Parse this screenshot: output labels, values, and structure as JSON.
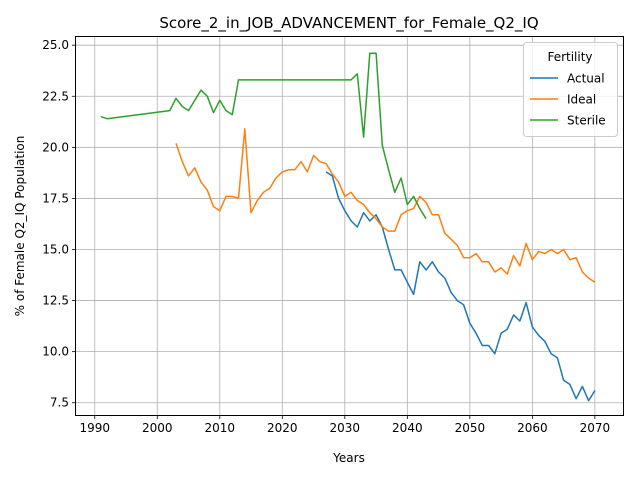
{
  "chart_data": {
    "type": "line",
    "title": "Score_2_in_JOB_ADVANCEMENT_for_Female_Q2_IQ",
    "xlabel": "Years",
    "ylabel": "% of Female Q2_IQ Population",
    "xlim": [
      1987,
      2074.5
    ],
    "ylim": [
      6.9,
      25.4
    ],
    "xticks": [
      1990,
      2000,
      2010,
      2020,
      2030,
      2040,
      2050,
      2060,
      2070
    ],
    "xtick_labels": [
      "1990",
      "2000",
      "2010",
      "2020",
      "2030",
      "2040",
      "2050",
      "2060",
      "2070"
    ],
    "yticks": [
      7.5,
      10.0,
      12.5,
      15.0,
      17.5,
      20.0,
      22.5,
      25.0
    ],
    "ytick_labels": [
      "7.5",
      "10.0",
      "12.5",
      "15.0",
      "17.5",
      "20.0",
      "22.5",
      "25.0"
    ],
    "grid": true,
    "legend": {
      "title": "Fertility",
      "placement": "top-right"
    },
    "series": [
      {
        "name": "Actual",
        "color": "#1f77b4",
        "x": [
          2027,
          2028,
          2029,
          2030,
          2031,
          2032,
          2033,
          2034,
          2035,
          2036,
          2037,
          2038,
          2039,
          2040,
          2041,
          2042,
          2043,
          2044,
          2045,
          2046,
          2047,
          2048,
          2049,
          2050,
          2051,
          2052,
          2053,
          2054,
          2055,
          2056,
          2057,
          2058,
          2059,
          2060,
          2061,
          2062,
          2063,
          2064,
          2065,
          2066,
          2067,
          2068,
          2069,
          2070
        ],
        "y": [
          18.8,
          18.6,
          17.5,
          16.9,
          16.4,
          16.1,
          16.8,
          16.4,
          16.7,
          16.1,
          15.0,
          14.0,
          14.0,
          13.4,
          12.8,
          14.4,
          14.0,
          14.4,
          13.9,
          13.6,
          12.9,
          12.5,
          12.3,
          11.4,
          10.9,
          10.3,
          10.3,
          9.9,
          10.9,
          11.1,
          11.8,
          11.5,
          12.4,
          11.2,
          10.8,
          10.5,
          9.9,
          9.7,
          8.6,
          8.4,
          7.7,
          8.3,
          7.6,
          8.1
        ]
      },
      {
        "name": "Ideal",
        "color": "#ff7f0e",
        "x": [
          2003,
          2004,
          2005,
          2006,
          2007,
          2008,
          2009,
          2010,
          2011,
          2012,
          2013,
          2014,
          2015,
          2016,
          2017,
          2018,
          2019,
          2020,
          2021,
          2022,
          2023,
          2024,
          2025,
          2026,
          2027,
          2028,
          2029,
          2030,
          2031,
          2032,
          2033,
          2034,
          2035,
          2036,
          2037,
          2038,
          2039,
          2040,
          2041,
          2042,
          2043,
          2044,
          2045,
          2046,
          2047,
          2048,
          2049,
          2050,
          2051,
          2052,
          2053,
          2054,
          2055,
          2056,
          2057,
          2058,
          2059,
          2060,
          2061,
          2062,
          2063,
          2064,
          2065,
          2066,
          2067,
          2068,
          2069,
          2070
        ],
        "y": [
          20.2,
          19.3,
          18.6,
          19.0,
          18.3,
          17.9,
          17.1,
          16.9,
          17.6,
          17.6,
          17.5,
          20.9,
          16.8,
          17.4,
          17.8,
          18.0,
          18.5,
          18.8,
          18.9,
          18.9,
          19.3,
          18.8,
          19.6,
          19.3,
          19.2,
          18.7,
          18.3,
          17.6,
          17.8,
          17.4,
          17.2,
          16.8,
          16.5,
          16.1,
          15.9,
          15.9,
          16.7,
          16.9,
          17.0,
          17.6,
          17.3,
          16.7,
          16.7,
          15.8,
          15.5,
          15.2,
          14.6,
          14.6,
          14.8,
          14.4,
          14.4,
          13.9,
          14.1,
          13.8,
          14.7,
          14.2,
          15.3,
          14.5,
          14.9,
          14.8,
          15.0,
          14.8,
          15.0,
          14.5,
          14.6,
          13.9,
          13.6,
          13.4
        ]
      },
      {
        "name": "Sterile",
        "color": "#2ca02c",
        "x": [
          1991,
          1992,
          2002,
          2003,
          2004,
          2005,
          2006,
          2007,
          2008,
          2009,
          2010,
          2011,
          2012,
          2013,
          2014,
          2015,
          2016,
          2017,
          2018,
          2019,
          2020,
          2021,
          2022,
          2023,
          2024,
          2025,
          2026,
          2027,
          2028,
          2029,
          2030,
          2031,
          2032,
          2033,
          2034,
          2035,
          2036,
          2037,
          2038,
          2039,
          2040,
          2041,
          2042,
          2043
        ],
        "y": [
          21.5,
          21.4,
          21.8,
          22.4,
          22.0,
          21.8,
          22.3,
          22.8,
          22.5,
          21.7,
          22.3,
          21.8,
          21.6,
          23.3,
          23.3,
          23.3,
          23.3,
          23.3,
          23.3,
          23.3,
          23.3,
          23.3,
          23.3,
          23.3,
          23.3,
          23.3,
          23.3,
          23.3,
          23.3,
          23.3,
          23.3,
          23.3,
          23.6,
          20.5,
          24.6,
          24.6,
          20.1,
          18.9,
          17.8,
          18.5,
          17.2,
          17.6,
          17.0,
          16.5
        ]
      }
    ]
  }
}
